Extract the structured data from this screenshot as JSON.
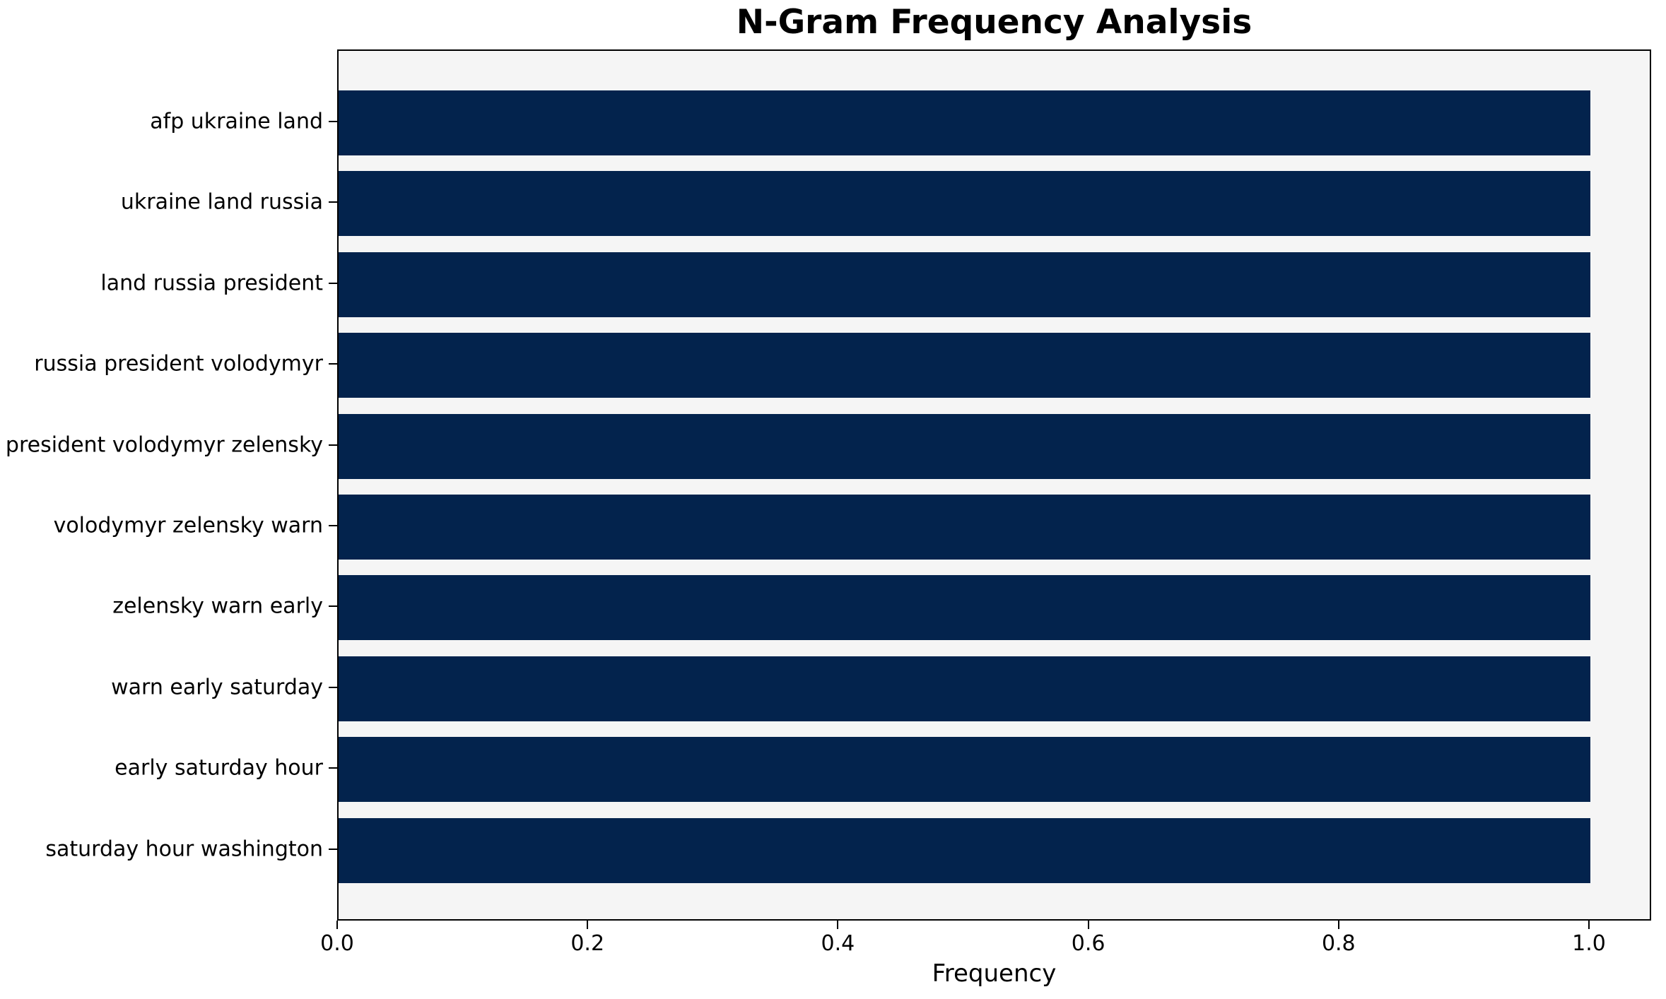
{
  "chart_data": {
    "type": "bar",
    "orientation": "horizontal",
    "title": "N-Gram Frequency Analysis",
    "xlabel": "Frequency",
    "ylabel": "",
    "categories": [
      "afp ukraine land",
      "ukraine land russia",
      "land russia president",
      "russia president volodymyr",
      "president volodymyr zelensky",
      "volodymyr zelensky warn",
      "zelensky warn early",
      "warn early saturday",
      "early saturday hour",
      "saturday hour washington"
    ],
    "values": [
      1.0,
      1.0,
      1.0,
      1.0,
      1.0,
      1.0,
      1.0,
      1.0,
      1.0,
      1.0
    ],
    "xlim": [
      0,
      1.05
    ],
    "x_tick_labels": [
      "0.0",
      "0.2",
      "0.4",
      "0.6",
      "0.8",
      "1.0"
    ],
    "x_tick_values": [
      0.0,
      0.2,
      0.4,
      0.6,
      0.8,
      1.0
    ],
    "bar_color": "#03234d",
    "plot_background": "#f5f5f5",
    "spine_color": "#000000",
    "grid": false,
    "legend_position": "none"
  }
}
